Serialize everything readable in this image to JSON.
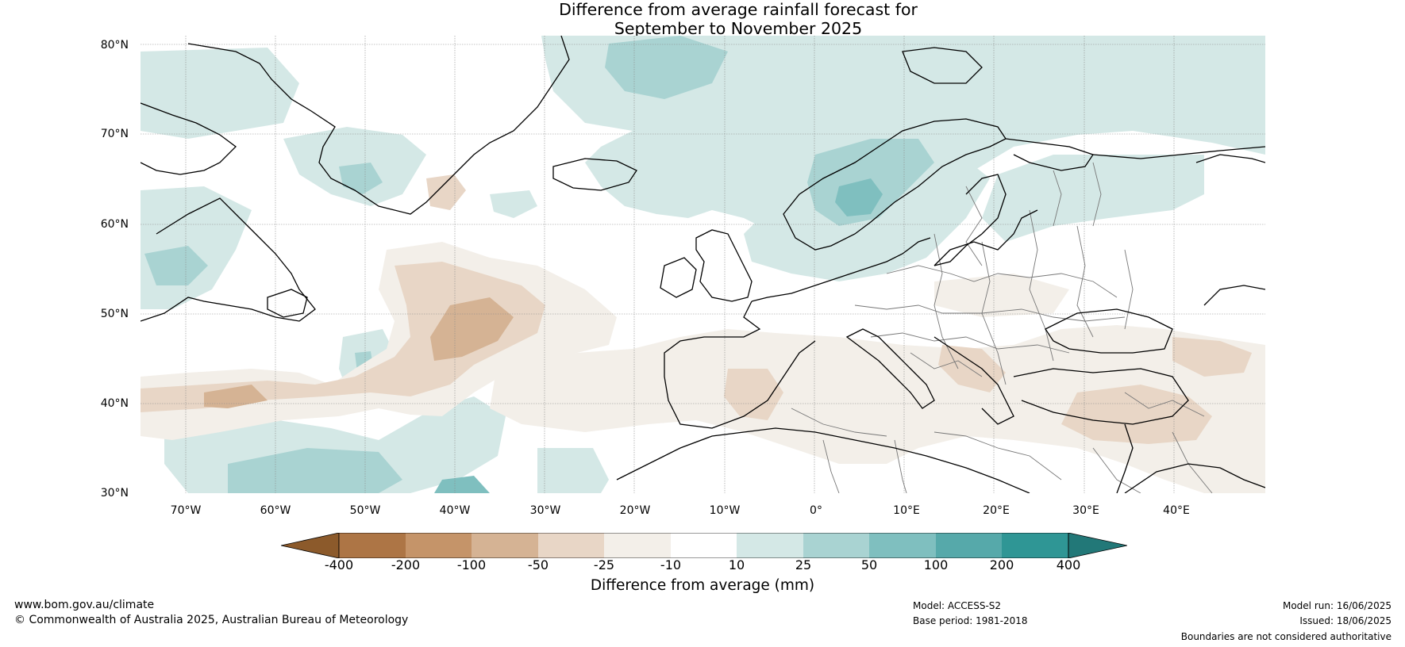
{
  "title": {
    "line1": "Difference from average rainfall forecast for",
    "line2": "September to November 2025"
  },
  "map": {
    "lat_labels": [
      "80°N",
      "70°N",
      "60°N",
      "50°N",
      "40°N",
      "30°N"
    ],
    "lon_labels": [
      "70°W",
      "60°W",
      "50°W",
      "40°W",
      "30°W",
      "20°W",
      "10°W",
      "0°",
      "10°E",
      "20°E",
      "30°E",
      "40°E"
    ]
  },
  "legend": {
    "ticks": [
      "-400",
      "-200",
      "-100",
      "-50",
      "-25",
      "-10",
      "10",
      "25",
      "50",
      "100",
      "200",
      "400"
    ],
    "label": "Difference from average (mm)",
    "colors": [
      "#8c5a2b",
      "#ad7545",
      "#c59469",
      "#d5b394",
      "#e8d6c6",
      "#f3efe9",
      "#ffffff",
      "#d4e8e6",
      "#a9d3d2",
      "#7fbfbf",
      "#56a9aa",
      "#2f9695",
      "#227878"
    ]
  },
  "footer": {
    "website": "www.bom.gov.au/climate",
    "copyright": "© Commonwealth of Australia 2025, Australian Bureau of Meteorology",
    "model": "Model: ACCESS-S2",
    "base_period": "Base period: 1981-2018",
    "model_run": "Model run: 16/06/2025",
    "issued": "Issued: 18/06/2025",
    "boundaries": "Boundaries are not considered authoritative"
  }
}
